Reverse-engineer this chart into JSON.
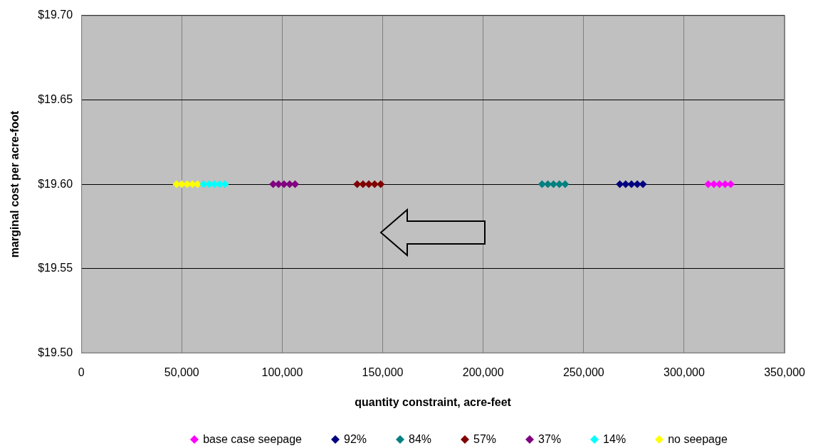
{
  "chart_data": {
    "type": "scatter",
    "xlabel": "quantity constraint, acre-feet",
    "ylabel": "marginal cost per acre-foot",
    "xlim": [
      0,
      350000
    ],
    "xticks": [
      0,
      {
        "value": 50000,
        "label": "50,000"
      },
      {
        "value": 100000,
        "label": "100,000"
      },
      {
        "value": 150000,
        "label": "150,000"
      },
      {
        "value": 200000,
        "label": "200,000"
      },
      {
        "value": 250000,
        "label": "250,000"
      },
      {
        "value": 300000,
        "label": "300,000"
      },
      {
        "value": 350000,
        "label": "350,000"
      }
    ],
    "ylim": [
      19.5,
      19.7
    ],
    "yticks": [
      {
        "value": 19.5,
        "label": "$19.50"
      },
      {
        "value": 19.55,
        "label": "$19.55"
      },
      {
        "value": 19.6,
        "label": "$19.60"
      },
      {
        "value": 19.65,
        "label": "$19.65"
      },
      {
        "value": 19.7,
        "label": "$19.70"
      }
    ],
    "grid": true,
    "legend": "bottom",
    "marker": "diamond",
    "series": [
      {
        "name": "base case seepage",
        "color": "#ff00ff",
        "x": [
          312000,
          314800,
          317600,
          320400,
          323200
        ],
        "values": [
          19.6,
          19.6,
          19.6,
          19.6,
          19.6
        ]
      },
      {
        "name": "92%",
        "color": "#000080",
        "x": [
          268000,
          270900,
          273800,
          276700,
          279500
        ],
        "values": [
          19.6,
          19.6,
          19.6,
          19.6,
          19.6
        ]
      },
      {
        "name": "84%",
        "color": "#008080",
        "x": [
          229300,
          232200,
          235000,
          237900,
          240800
        ],
        "values": [
          19.6,
          19.6,
          19.6,
          19.6,
          19.6
        ]
      },
      {
        "name": "57%",
        "color": "#800000",
        "x": [
          137300,
          140200,
          143100,
          146000,
          149000
        ],
        "values": [
          19.6,
          19.6,
          19.6,
          19.6,
          19.6
        ]
      },
      {
        "name": "37%",
        "color": "#800080",
        "x": [
          95500,
          98200,
          100900,
          103700,
          106400
        ],
        "values": [
          19.6,
          19.6,
          19.6,
          19.6,
          19.6
        ]
      },
      {
        "name": "14%",
        "color": "#00ffff",
        "x": [
          60900,
          63600,
          66200,
          68900,
          71500
        ],
        "values": [
          19.6,
          19.6,
          19.6,
          19.6,
          19.6
        ]
      },
      {
        "name": "no seepage",
        "color": "#ffff00",
        "x": [
          47400,
          50000,
          52700,
          55300,
          57900
        ],
        "values": [
          19.6,
          19.6,
          19.6,
          19.6,
          19.6
        ]
      }
    ]
  }
}
